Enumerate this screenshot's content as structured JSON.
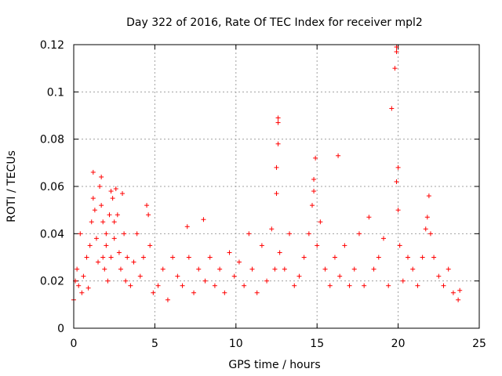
{
  "chart_data": {
    "type": "scatter",
    "title": "Day 322 of 2016, Rate Of TEC Index for receiver mpl2",
    "xlabel": "GPS time / hours",
    "ylabel": "ROTI / TECUs",
    "xlim": [
      0,
      25
    ],
    "ylim": [
      0,
      0.12
    ],
    "xticks": [
      0,
      5,
      10,
      15,
      20,
      25
    ],
    "yticks": [
      0,
      0.02,
      0.04,
      0.06,
      0.08,
      0.1,
      0.12
    ],
    "xtick_labels": [
      "0",
      "5",
      "10",
      "15",
      "20",
      "25"
    ],
    "ytick_labels": [
      "0",
      "0.02",
      "0.04",
      "0.06",
      "0.08",
      "0.1",
      "0.12"
    ],
    "grid": true,
    "marker": "+",
    "color": "#ff0000",
    "series": [
      {
        "name": "ROTI mpl2",
        "x": [
          0.0,
          0.1,
          0.2,
          0.3,
          0.4,
          0.5,
          0.6,
          0.8,
          0.9,
          1.0,
          1.1,
          1.2,
          1.2,
          1.3,
          1.4,
          1.5,
          1.6,
          1.7,
          1.7,
          1.8,
          1.8,
          1.9,
          2.0,
          2.0,
          2.1,
          2.2,
          2.3,
          2.3,
          2.4,
          2.5,
          2.5,
          2.6,
          2.7,
          2.8,
          2.9,
          3.0,
          3.1,
          3.2,
          3.3,
          3.5,
          3.7,
          3.9,
          4.1,
          4.3,
          4.5,
          4.6,
          4.7,
          4.9,
          5.2,
          5.5,
          5.8,
          6.1,
          6.4,
          6.7,
          7.0,
          7.1,
          7.4,
          7.7,
          8.0,
          8.1,
          8.4,
          8.7,
          9.0,
          9.3,
          9.6,
          9.9,
          10.2,
          10.5,
          10.8,
          11.0,
          11.3,
          11.6,
          11.9,
          12.2,
          12.4,
          12.5,
          12.5,
          12.6,
          12.6,
          12.6,
          12.7,
          13.0,
          13.3,
          13.6,
          13.9,
          14.2,
          14.5,
          14.7,
          14.8,
          14.8,
          14.9,
          15.0,
          15.2,
          15.5,
          15.8,
          16.1,
          16.3,
          16.4,
          16.7,
          17.0,
          17.3,
          17.6,
          17.9,
          18.2,
          18.5,
          18.8,
          19.1,
          19.4,
          19.6,
          19.8,
          19.9,
          19.9,
          19.9,
          20.0,
          20.0,
          20.1,
          20.3,
          20.6,
          20.9,
          21.2,
          21.5,
          21.7,
          21.8,
          21.9,
          22.0,
          22.2,
          22.5,
          22.8,
          23.1,
          23.4,
          23.7,
          23.8
        ],
        "y": [
          0.012,
          0.02,
          0.025,
          0.018,
          0.04,
          0.015,
          0.022,
          0.03,
          0.017,
          0.035,
          0.045,
          0.055,
          0.066,
          0.05,
          0.038,
          0.028,
          0.06,
          0.064,
          0.052,
          0.03,
          0.045,
          0.025,
          0.04,
          0.035,
          0.02,
          0.048,
          0.058,
          0.03,
          0.055,
          0.045,
          0.038,
          0.059,
          0.048,
          0.032,
          0.025,
          0.057,
          0.04,
          0.02,
          0.03,
          0.018,
          0.028,
          0.04,
          0.022,
          0.03,
          0.052,
          0.048,
          0.035,
          0.015,
          0.018,
          0.025,
          0.012,
          0.03,
          0.022,
          0.018,
          0.043,
          0.03,
          0.015,
          0.025,
          0.046,
          0.02,
          0.03,
          0.018,
          0.025,
          0.015,
          0.032,
          0.022,
          0.028,
          0.018,
          0.04,
          0.025,
          0.015,
          0.035,
          0.02,
          0.042,
          0.025,
          0.057,
          0.068,
          0.078,
          0.087,
          0.089,
          0.032,
          0.025,
          0.04,
          0.018,
          0.022,
          0.03,
          0.04,
          0.052,
          0.058,
          0.063,
          0.072,
          0.035,
          0.045,
          0.025,
          0.018,
          0.03,
          0.073,
          0.022,
          0.035,
          0.018,
          0.025,
          0.04,
          0.018,
          0.047,
          0.025,
          0.03,
          0.038,
          0.018,
          0.093,
          0.11,
          0.117,
          0.119,
          0.062,
          0.068,
          0.05,
          0.035,
          0.02,
          0.03,
          0.025,
          0.018,
          0.03,
          0.042,
          0.047,
          0.056,
          0.04,
          0.03,
          0.022,
          0.018,
          0.025,
          0.015,
          0.012,
          0.016
        ]
      }
    ]
  }
}
